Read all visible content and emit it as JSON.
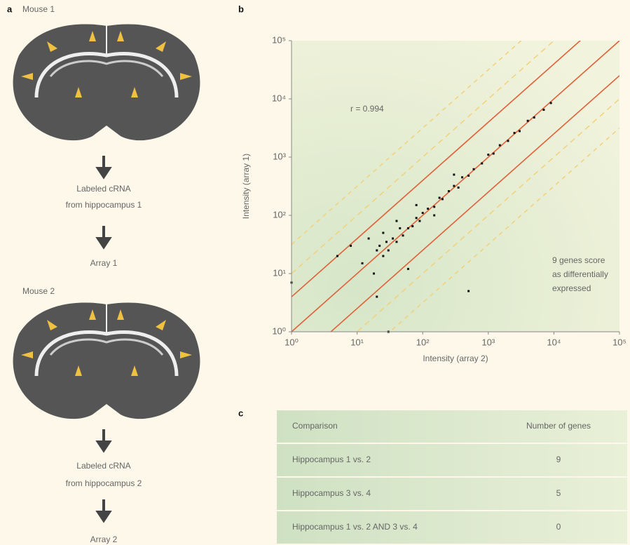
{
  "panel_a": {
    "label": "a",
    "mouse_1": "Mouse 1",
    "step_1_lines": [
      "Labeled cRNA",
      "from hippocampus 1"
    ],
    "array_1": "Array 1",
    "mouse_2": "Mouse 2",
    "step_2_lines": [
      "Labeled cRNA",
      "from hippocampus 2"
    ],
    "array_2": "Array 2"
  },
  "panel_b": {
    "label": "b",
    "chart_data": {
      "type": "scatter",
      "x_label": "Intensity (array 2)",
      "y_label": "Intensity (array 1)",
      "annotation": "r = 0.994",
      "note_lines": [
        "9 genes score",
        "as differentially",
        "expressed"
      ],
      "log_scale": true,
      "grid": false,
      "color": "#111111",
      "xlim": [
        1,
        100000
      ],
      "ylim": [
        1,
        100000
      ],
      "xticks": [
        {
          "value": 1,
          "label": "10⁰"
        },
        {
          "value": 10,
          "label": "10¹"
        },
        {
          "value": 100,
          "label": "10²"
        },
        {
          "value": 1000,
          "label": "10³"
        },
        {
          "value": 10000,
          "label": "10⁴"
        },
        {
          "value": 100000,
          "label": "10⁵"
        }
      ],
      "yticks": [
        {
          "value": 1,
          "label": "10⁰"
        },
        {
          "value": 10,
          "label": "10¹"
        },
        {
          "value": 100,
          "label": "10²"
        },
        {
          "value": 1000,
          "label": "10³"
        },
        {
          "value": 10000,
          "label": "10⁴"
        },
        {
          "value": 100000,
          "label": "10⁵"
        }
      ],
      "x": [
        1,
        5,
        8,
        12,
        15,
        18,
        20,
        22,
        25,
        28,
        30,
        35,
        40,
        45,
        50,
        60,
        70,
        80,
        90,
        100,
        120,
        150,
        180,
        200,
        250,
        300,
        350,
        400,
        500,
        600,
        800,
        1000,
        1200,
        1500,
        2000,
        2500,
        3000,
        4000,
        5000,
        7000,
        9000,
        30,
        60,
        25,
        300,
        40,
        150,
        20,
        80,
        500
      ],
      "y": [
        7,
        20,
        30,
        15,
        40,
        10,
        25,
        30,
        20,
        35,
        25,
        40,
        35,
        60,
        45,
        60,
        65,
        90,
        80,
        110,
        130,
        140,
        200,
        190,
        260,
        320,
        300,
        450,
        480,
        620,
        780,
        1100,
        1150,
        1600,
        1900,
        2600,
        2800,
        4200,
        4800,
        6500,
        8500,
        1,
        12,
        50,
        500,
        80,
        100,
        4,
        150,
        5
      ]
    }
  },
  "panel_c": {
    "label": "c",
    "table": {
      "header": [
        "Comparison",
        "Number of genes"
      ],
      "rows": [
        [
          "Hippocampus 1 vs. 2",
          "9"
        ],
        [
          "Hippocampus 3 vs. 4",
          "5"
        ],
        [
          "Hippocampus 1 vs. 2 AND 3 vs. 4",
          "0"
        ]
      ]
    }
  }
}
